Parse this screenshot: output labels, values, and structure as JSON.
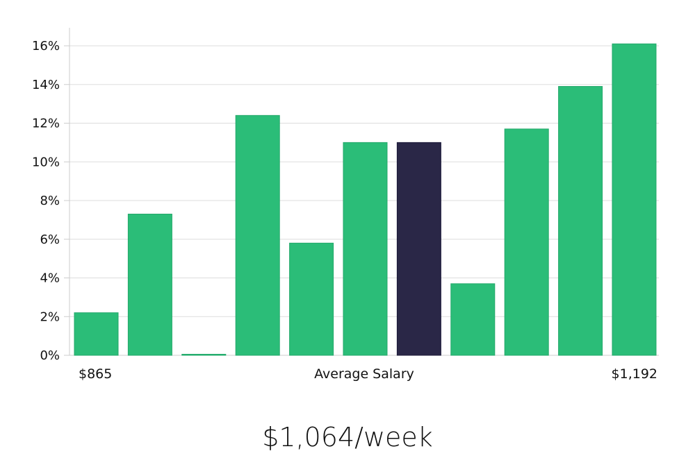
{
  "chart_data": {
    "type": "bar",
    "values": [
      2.2,
      7.3,
      0.05,
      12.4,
      5.8,
      11.0,
      11.0,
      3.7,
      11.7,
      13.9,
      16.1
    ],
    "highlight_index": 6,
    "ylim": [
      0,
      17
    ],
    "y_ticks": [
      "0%",
      "2%",
      "4%",
      "6%",
      "8%",
      "10%",
      "12%",
      "14%",
      "16%"
    ],
    "y_tick_values": [
      0,
      2,
      4,
      6,
      8,
      10,
      12,
      14,
      16
    ],
    "x_label_left": "$865",
    "x_label_center": "Average Salary",
    "x_label_right": "$1,192",
    "grid": true,
    "colors": {
      "bar": "#2bbd78",
      "highlight": "#2a2747",
      "grid": "#dddddd",
      "axis": "#cccccc"
    }
  },
  "headline": "$1,064/week"
}
